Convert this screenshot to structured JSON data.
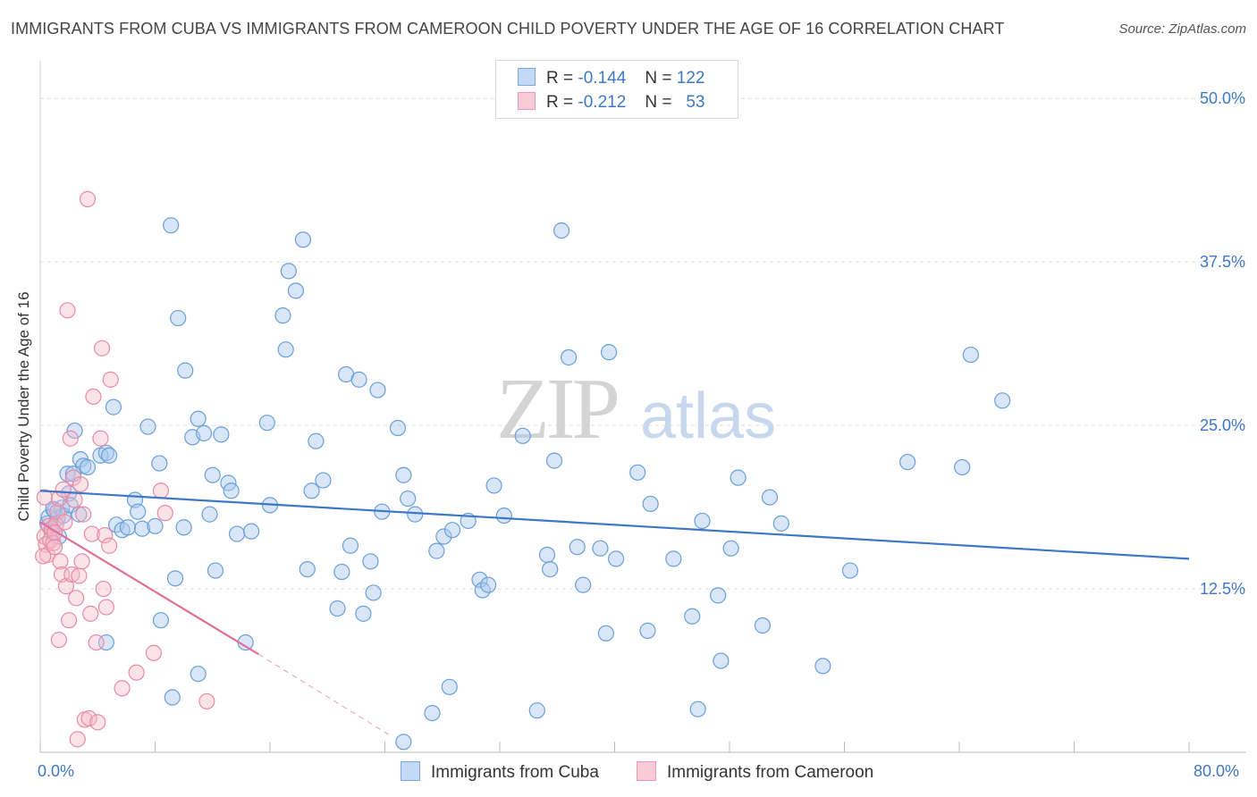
{
  "title": "IMMIGRANTS FROM CUBA VS IMMIGRANTS FROM CAMEROON CHILD POVERTY UNDER THE AGE OF 16 CORRELATION CHART",
  "source": "Source: ZipAtlas.com",
  "watermark": {
    "zip": "ZIP",
    "atlas": "atlas"
  },
  "legend": {
    "r_label": "R =",
    "n_label": "N =",
    "series": [
      {
        "name": "Immigrants from Cuba",
        "r": "-0.144",
        "n": "122"
      },
      {
        "name": "Immigrants from Cameroon",
        "r": "-0.212",
        "n": "53"
      }
    ]
  },
  "colors": {
    "cuba_fill": "#a9c8ee",
    "cuba_stroke": "#6a9fd8",
    "cuba_line": "#3d78c8",
    "cameroon_fill": "#f5b8ca",
    "cameroon_stroke": "#e88aa6",
    "cameroon_line": "#e0709a",
    "axis_text": "#3d78c8",
    "grid": "#dddddd"
  },
  "chart_data": {
    "type": "scatter",
    "title": "IMMIGRANTS FROM CUBA VS IMMIGRANTS FROM CAMEROON CHILD POVERTY UNDER THE AGE OF 16 CORRELATION CHART",
    "xlabel": "",
    "ylabel": "Child Poverty Under the Age of 16",
    "xlim": [
      0,
      80
    ],
    "ylim": [
      0,
      52.2
    ],
    "x_tick_labels": {
      "min": "0.0%",
      "max": "80.0%"
    },
    "y_ticks": [
      12.5,
      25.0,
      37.5,
      50.0
    ],
    "y_tick_labels": [
      "12.5%",
      "25.0%",
      "37.5%",
      "50.0%"
    ],
    "series": [
      {
        "name": "Immigrants from Cuba",
        "trend": {
          "x": [
            0,
            80
          ],
          "y": [
            20.0,
            14.8
          ],
          "dashed_to": null
        },
        "points": [
          [
            0.5,
            17.5
          ],
          [
            0.6,
            18.0
          ],
          [
            0.8,
            16.8
          ],
          [
            1.0,
            18.5
          ],
          [
            1.2,
            17.9
          ],
          [
            1.3,
            16.5
          ],
          [
            1.5,
            18.7
          ],
          [
            1.6,
            18.1
          ],
          [
            2.0,
            19.8
          ],
          [
            2.1,
            18.9
          ],
          [
            1.9,
            21.3
          ],
          [
            2.4,
            24.6
          ],
          [
            2.7,
            18.2
          ],
          [
            2.8,
            22.4
          ],
          [
            3.0,
            21.9
          ],
          [
            3.3,
            21.8
          ],
          [
            4.2,
            22.7
          ],
          [
            4.6,
            22.9
          ],
          [
            4.8,
            22.7
          ],
          [
            5.1,
            26.4
          ],
          [
            5.3,
            17.4
          ],
          [
            5.7,
            17.0
          ],
          [
            6.1,
            17.2
          ],
          [
            6.6,
            19.3
          ],
          [
            6.8,
            18.4
          ],
          [
            7.1,
            17.1
          ],
          [
            7.5,
            24.9
          ],
          [
            8.0,
            17.3
          ],
          [
            8.3,
            22.1
          ],
          [
            9.1,
            40.3
          ],
          [
            9.4,
            13.3
          ],
          [
            9.6,
            33.2
          ],
          [
            10.0,
            17.2
          ],
          [
            10.1,
            29.2
          ],
          [
            10.6,
            24.1
          ],
          [
            11.0,
            25.5
          ],
          [
            11.4,
            24.4
          ],
          [
            11.8,
            18.2
          ],
          [
            12.0,
            21.2
          ],
          [
            12.2,
            13.9
          ],
          [
            12.6,
            24.3
          ],
          [
            13.1,
            20.6
          ],
          [
            13.3,
            20.0
          ],
          [
            13.7,
            16.7
          ],
          [
            14.7,
            16.9
          ],
          [
            15.8,
            25.2
          ],
          [
            16.0,
            18.9
          ],
          [
            16.9,
            33.4
          ],
          [
            17.1,
            30.8
          ],
          [
            17.3,
            36.8
          ],
          [
            17.8,
            35.3
          ],
          [
            18.3,
            39.2
          ],
          [
            18.6,
            14.0
          ],
          [
            18.9,
            20.0
          ],
          [
            19.2,
            23.8
          ],
          [
            19.7,
            20.8
          ],
          [
            20.7,
            11.0
          ],
          [
            21.0,
            13.8
          ],
          [
            21.3,
            28.9
          ],
          [
            21.6,
            15.8
          ],
          [
            22.2,
            28.5
          ],
          [
            22.5,
            10.6
          ],
          [
            23.0,
            14.6
          ],
          [
            23.2,
            12.2
          ],
          [
            23.5,
            27.7
          ],
          [
            23.8,
            18.4
          ],
          [
            24.9,
            24.8
          ],
          [
            25.3,
            21.2
          ],
          [
            25.6,
            19.4
          ],
          [
            26.1,
            18.2
          ],
          [
            27.3,
            3.0
          ],
          [
            27.6,
            15.4
          ],
          [
            28.1,
            16.5
          ],
          [
            28.5,
            5.0
          ],
          [
            28.7,
            17.0
          ],
          [
            29.8,
            17.7
          ],
          [
            30.6,
            13.2
          ],
          [
            30.8,
            12.4
          ],
          [
            31.2,
            12.8
          ],
          [
            31.6,
            20.4
          ],
          [
            32.3,
            18.1
          ],
          [
            33.6,
            24.2
          ],
          [
            34.6,
            3.2
          ],
          [
            35.3,
            15.1
          ],
          [
            35.5,
            14.0
          ],
          [
            35.8,
            22.3
          ],
          [
            36.3,
            39.9
          ],
          [
            36.8,
            30.2
          ],
          [
            37.4,
            15.7
          ],
          [
            37.8,
            12.8
          ],
          [
            39.0,
            15.6
          ],
          [
            39.4,
            9.1
          ],
          [
            39.6,
            30.6
          ],
          [
            40.1,
            14.8
          ],
          [
            41.6,
            21.4
          ],
          [
            42.3,
            9.3
          ],
          [
            42.5,
            19.0
          ],
          [
            44.1,
            14.8
          ],
          [
            45.4,
            10.4
          ],
          [
            45.8,
            3.3
          ],
          [
            46.1,
            17.7
          ],
          [
            47.2,
            12.0
          ],
          [
            47.4,
            7.0
          ],
          [
            48.1,
            15.6
          ],
          [
            48.6,
            21.0
          ],
          [
            50.3,
            9.7
          ],
          [
            50.8,
            19.5
          ],
          [
            51.6,
            17.5
          ],
          [
            54.5,
            6.6
          ],
          [
            56.4,
            13.9
          ],
          [
            60.4,
            22.2
          ],
          [
            64.2,
            21.8
          ],
          [
            64.8,
            30.4
          ],
          [
            67.0,
            26.9
          ],
          [
            2.3,
            21.3
          ],
          [
            0.9,
            18.6
          ],
          [
            25.3,
            0.8
          ],
          [
            11.0,
            6.0
          ],
          [
            4.6,
            8.4
          ],
          [
            8.4,
            10.1
          ],
          [
            14.3,
            8.4
          ],
          [
            9.2,
            4.2
          ]
        ]
      },
      {
        "name": "Immigrants from Cameroon",
        "trend": {
          "x": [
            0,
            15.2
          ],
          "y": [
            17.6,
            7.5
          ],
          "dashed_to": [
            24.5,
            1.2
          ]
        },
        "points": [
          [
            0.3,
            16.5
          ],
          [
            0.4,
            15.9
          ],
          [
            0.5,
            15.1
          ],
          [
            0.6,
            17.3
          ],
          [
            0.7,
            16.2
          ],
          [
            0.8,
            17.1
          ],
          [
            0.9,
            16.0
          ],
          [
            1.0,
            15.7
          ],
          [
            1.1,
            17.4
          ],
          [
            1.2,
            18.4
          ],
          [
            1.3,
            19.4
          ],
          [
            1.4,
            14.6
          ],
          [
            1.5,
            13.6
          ],
          [
            1.6,
            20.1
          ],
          [
            1.7,
            17.6
          ],
          [
            1.8,
            12.7
          ],
          [
            1.9,
            33.8
          ],
          [
            2.0,
            10.1
          ],
          [
            2.1,
            24.0
          ],
          [
            2.2,
            13.6
          ],
          [
            2.3,
            21.0
          ],
          [
            2.4,
            19.3
          ],
          [
            2.5,
            11.8
          ],
          [
            2.7,
            13.5
          ],
          [
            2.8,
            20.5
          ],
          [
            2.9,
            14.6
          ],
          [
            3.1,
            2.5
          ],
          [
            3.3,
            42.3
          ],
          [
            3.4,
            2.6
          ],
          [
            3.5,
            10.6
          ],
          [
            3.6,
            16.7
          ],
          [
            3.7,
            27.2
          ],
          [
            3.9,
            8.4
          ],
          [
            4.0,
            2.3
          ],
          [
            4.2,
            24.0
          ],
          [
            4.3,
            30.9
          ],
          [
            4.4,
            12.5
          ],
          [
            4.5,
            16.6
          ],
          [
            4.6,
            11.1
          ],
          [
            4.8,
            15.8
          ],
          [
            4.9,
            28.5
          ],
          [
            1.3,
            8.6
          ],
          [
            3.0,
            18.2
          ],
          [
            2.6,
            1.0
          ],
          [
            5.7,
            4.9
          ],
          [
            6.7,
            6.1
          ],
          [
            7.9,
            7.6
          ],
          [
            8.4,
            20.0
          ],
          [
            8.7,
            18.3
          ],
          [
            11.6,
            3.9
          ],
          [
            0.2,
            15.0
          ],
          [
            0.3,
            19.5
          ],
          [
            1.0,
            16.8
          ]
        ]
      }
    ]
  }
}
